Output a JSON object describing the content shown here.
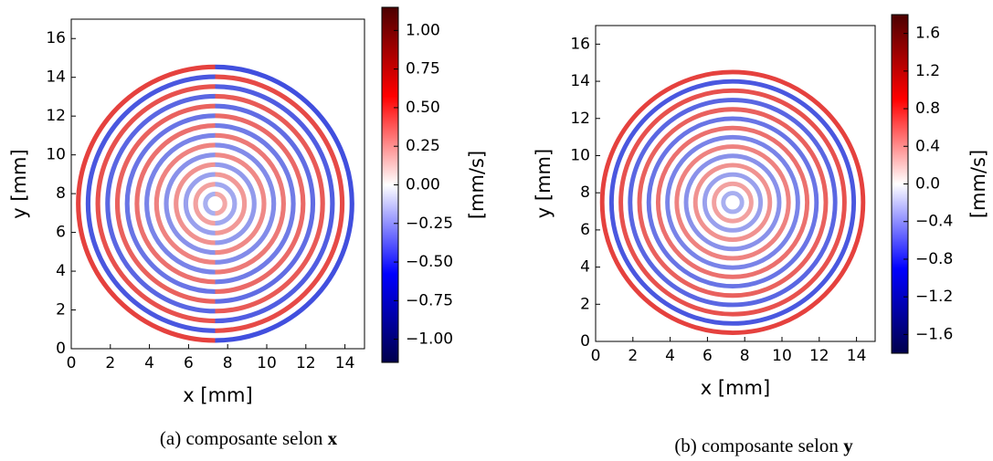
{
  "chart_data": [
    {
      "type": "heatmap",
      "xlabel": "x [mm]",
      "ylabel": "y [mm]",
      "xlim": [
        0,
        15
      ],
      "ylim": [
        0,
        17
      ],
      "xticks": [
        0,
        2,
        4,
        6,
        8,
        10,
        12,
        14
      ],
      "yticks": [
        0,
        2,
        4,
        6,
        8,
        10,
        12,
        14,
        16
      ],
      "colormap": "seismic",
      "colorbar_label": "[mm/s]",
      "clim": [
        -1.15,
        1.15
      ],
      "cticks": [
        {
          "value": 1,
          "label": "1.00"
        },
        {
          "value": 0.75,
          "label": "0.75"
        },
        {
          "value": 0.5,
          "label": "0.50"
        },
        {
          "value": 0.25,
          "label": "0.25"
        },
        {
          "value": 0,
          "label": "0.00"
        },
        {
          "value": -0.25,
          "label": "−0.25"
        },
        {
          "value": -0.5,
          "label": "−0.50"
        },
        {
          "value": -0.75,
          "label": "−0.75"
        },
        {
          "value": -1,
          "label": "−1.00"
        }
      ],
      "caption": {
        "text": "(a) composante selon",
        "vector": "x"
      }
    },
    {
      "type": "heatmap",
      "xlabel": "x [mm]",
      "ylabel": "y [mm]",
      "xlim": [
        0,
        15
      ],
      "ylim": [
        0,
        17
      ],
      "xticks": [
        0,
        2,
        4,
        6,
        8,
        10,
        12,
        14
      ],
      "yticks": [
        0,
        2,
        4,
        6,
        8,
        10,
        12,
        14,
        16
      ],
      "colormap": "seismic",
      "colorbar_label": "[mm/s]",
      "clim": [
        -1.8,
        1.8
      ],
      "cticks": [
        1.6,
        1.2,
        0.8,
        0.4,
        {
          "value": 0,
          "label": "0.0"
        },
        {
          "value": -0.4,
          "label": "−0.4"
        },
        {
          "value": -0.8,
          "label": "−0.8"
        },
        {
          "value": -1.2,
          "label": "−1.2"
        },
        {
          "value": -1.6,
          "label": "−1.6"
        }
      ],
      "caption": {
        "text": "(b) composante selon",
        "vector": "y"
      }
    }
  ]
}
